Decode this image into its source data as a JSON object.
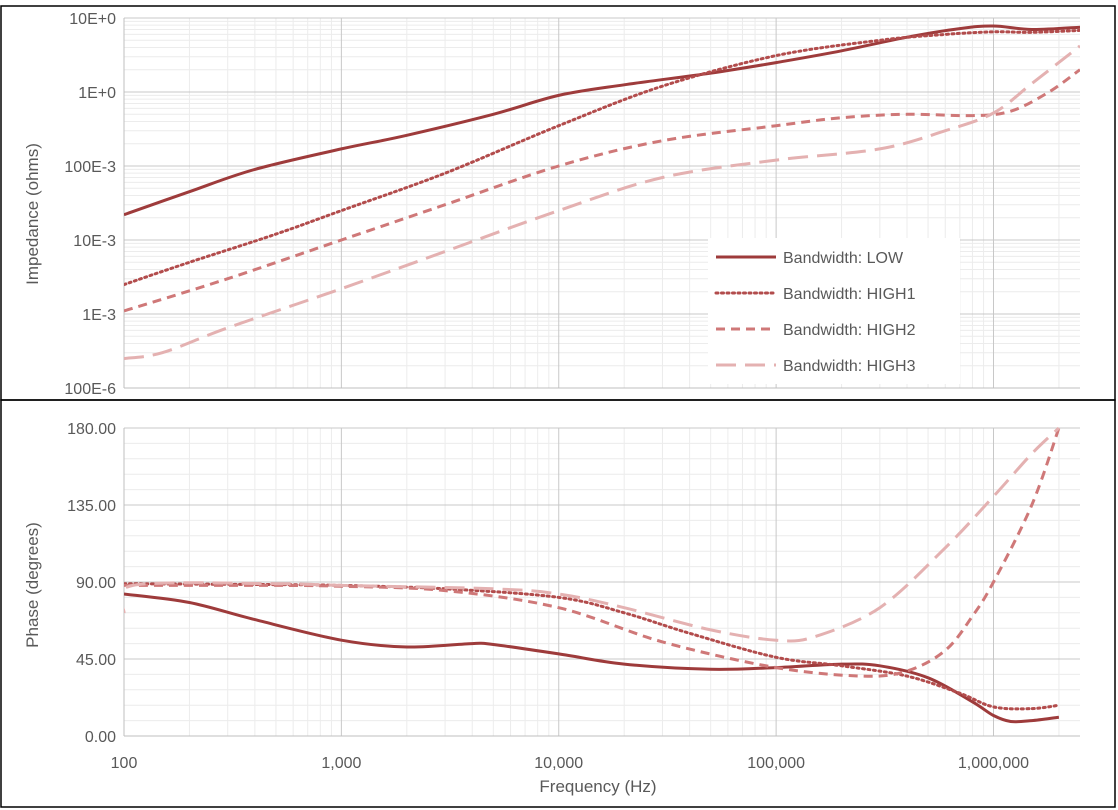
{
  "chart_data": [
    {
      "type": "line",
      "ylabel": "Impedance (ohms)",
      "xscale": "log",
      "yscale": "log",
      "xlim": [
        100,
        2500000
      ],
      "ylim": [
        0.0001,
        10
      ],
      "y_tick_values": [
        0.0001,
        0.001,
        0.01,
        0.1,
        1,
        10
      ],
      "y_tick_labels": [
        "100E-6",
        "1E-3",
        "10E-3",
        "100E-3",
        "1E+0",
        "10E+0"
      ],
      "grid": true,
      "legend_position": "lower-right",
      "series": [
        {
          "name": "Bandwidth: LOW",
          "color": "#9e3b3b",
          "dash": "solid",
          "points": [
            [
              100,
              0.022
            ],
            [
              200,
              0.045
            ],
            [
              400,
              0.09
            ],
            [
              1000,
              0.17
            ],
            [
              2000,
              0.26
            ],
            [
              5000,
              0.5
            ],
            [
              10000,
              0.9
            ],
            [
              20000,
              1.25
            ],
            [
              50000,
              1.8
            ],
            [
              100000,
              2.5
            ],
            [
              200000,
              3.6
            ],
            [
              400000,
              5.5
            ],
            [
              700000,
              7.2
            ],
            [
              1000000,
              7.8
            ],
            [
              1500000,
              7.0
            ],
            [
              2500000,
              7.5
            ]
          ]
        },
        {
          "name": "Bandwidth: HIGH1",
          "color": "#b24c4c",
          "dash": "dotted",
          "points": [
            [
              100,
              0.0025
            ],
            [
              200,
              0.005
            ],
            [
              500,
              0.012
            ],
            [
              1000,
              0.025
            ],
            [
              3000,
              0.08
            ],
            [
              10000,
              0.35
            ],
            [
              30000,
              1.2
            ],
            [
              100000,
              3.1
            ],
            [
              300000,
              5.0
            ],
            [
              600000,
              6.0
            ],
            [
              1000000,
              6.5
            ],
            [
              1500000,
              6.4
            ],
            [
              2500000,
              6.8
            ]
          ]
        },
        {
          "name": "Bandwidth: HIGH2",
          "color": "#cf7878",
          "dash": "dashed",
          "points": [
            [
              100,
              0.0011
            ],
            [
              300,
              0.003
            ],
            [
              1000,
              0.01
            ],
            [
              3000,
              0.03
            ],
            [
              10000,
              0.1
            ],
            [
              30000,
              0.22
            ],
            [
              100000,
              0.35
            ],
            [
              200000,
              0.45
            ],
            [
              400000,
              0.5
            ],
            [
              800000,
              0.48
            ],
            [
              1200000,
              0.55
            ],
            [
              1800000,
              1.0
            ],
            [
              2500000,
              2.0
            ]
          ]
        },
        {
          "name": "Bandwidth: HIGH3",
          "color": "#e4b1b1",
          "dash": "longdash",
          "points": [
            [
              100,
              0.00025
            ],
            [
              150,
              0.0003
            ],
            [
              300,
              0.00065
            ],
            [
              1000,
              0.0022
            ],
            [
              3000,
              0.007
            ],
            [
              10000,
              0.025
            ],
            [
              30000,
              0.07
            ],
            [
              100000,
              0.12
            ],
            [
              300000,
              0.17
            ],
            [
              600000,
              0.3
            ],
            [
              1000000,
              0.52
            ],
            [
              1500000,
              1.3
            ],
            [
              2500000,
              4.2
            ]
          ]
        }
      ]
    },
    {
      "type": "line",
      "xlabel": "Frequency (Hz)",
      "ylabel": "Phase (degrees)",
      "xscale": "log",
      "xlim": [
        100,
        2500000
      ],
      "ylim": [
        0,
        180
      ],
      "x_tick_values": [
        100,
        1000,
        10000,
        100000,
        1000000
      ],
      "x_tick_labels": [
        "100",
        "1,000",
        "10,000",
        "100,000",
        "1,000,000"
      ],
      "y_tick_values": [
        0,
        45,
        90,
        135,
        180
      ],
      "y_tick_labels": [
        "0.00",
        "45.00",
        "90.00",
        "135.00",
        "180.00"
      ],
      "grid": true,
      "series": [
        {
          "name": "Bandwidth: LOW",
          "color": "#9e3b3b",
          "dash": "solid",
          "points": [
            [
              100,
              83
            ],
            [
              200,
              78
            ],
            [
              400,
              68
            ],
            [
              1000,
              56
            ],
            [
              2000,
              52
            ],
            [
              4000,
              54
            ],
            [
              5000,
              53.5
            ],
            [
              10000,
              48
            ],
            [
              20000,
              42
            ],
            [
              50000,
              39
            ],
            [
              100000,
              40
            ],
            [
              200000,
              42
            ],
            [
              300000,
              41
            ],
            [
              500000,
              34
            ],
            [
              800000,
              20
            ],
            [
              1000000,
              12
            ],
            [
              1200000,
              8.5
            ],
            [
              1500000,
              9
            ],
            [
              2000000,
              11
            ]
          ]
        },
        {
          "name": "Bandwidth: HIGH1",
          "color": "#b24c4c",
          "dash": "dotted",
          "points": [
            [
              100,
              89
            ],
            [
              500,
              88.5
            ],
            [
              1000,
              88
            ],
            [
              3000,
              86
            ],
            [
              10000,
              81
            ],
            [
              20000,
              72
            ],
            [
              40000,
              60
            ],
            [
              100000,
              46
            ],
            [
              200000,
              41
            ],
            [
              400000,
              35
            ],
            [
              700000,
              25
            ],
            [
              1000000,
              17
            ],
            [
              1500000,
              16
            ],
            [
              2000000,
              18
            ]
          ]
        },
        {
          "name": "Bandwidth: HIGH2",
          "color": "#cf7878",
          "dash": "dashed",
          "points": [
            [
              100,
              88
            ],
            [
              500,
              88
            ],
            [
              1000,
              87.5
            ],
            [
              3000,
              85
            ],
            [
              10000,
              75
            ],
            [
              30000,
              55
            ],
            [
              100000,
              40
            ],
            [
              250000,
              35
            ],
            [
              400000,
              38
            ],
            [
              600000,
              50
            ],
            [
              800000,
              70
            ],
            [
              1000000,
              90
            ],
            [
              1500000,
              135
            ],
            [
              2000000,
              180
            ]
          ]
        },
        {
          "name": "Bandwidth: HIGH3",
          "color": "#e4b1b1",
          "dash": "longdash",
          "points": [
            [
              100,
              72
            ],
            [
              110,
              88
            ],
            [
              500,
              89
            ],
            [
              1000,
              88
            ],
            [
              5000,
              86
            ],
            [
              10000,
              83
            ],
            [
              20000,
              75
            ],
            [
              50000,
              62
            ],
            [
              100000,
              56
            ],
            [
              150000,
              58
            ],
            [
              300000,
              75
            ],
            [
              600000,
              110
            ],
            [
              1000000,
              140
            ],
            [
              1500000,
              165
            ],
            [
              2000000,
              180
            ]
          ]
        }
      ]
    }
  ]
}
